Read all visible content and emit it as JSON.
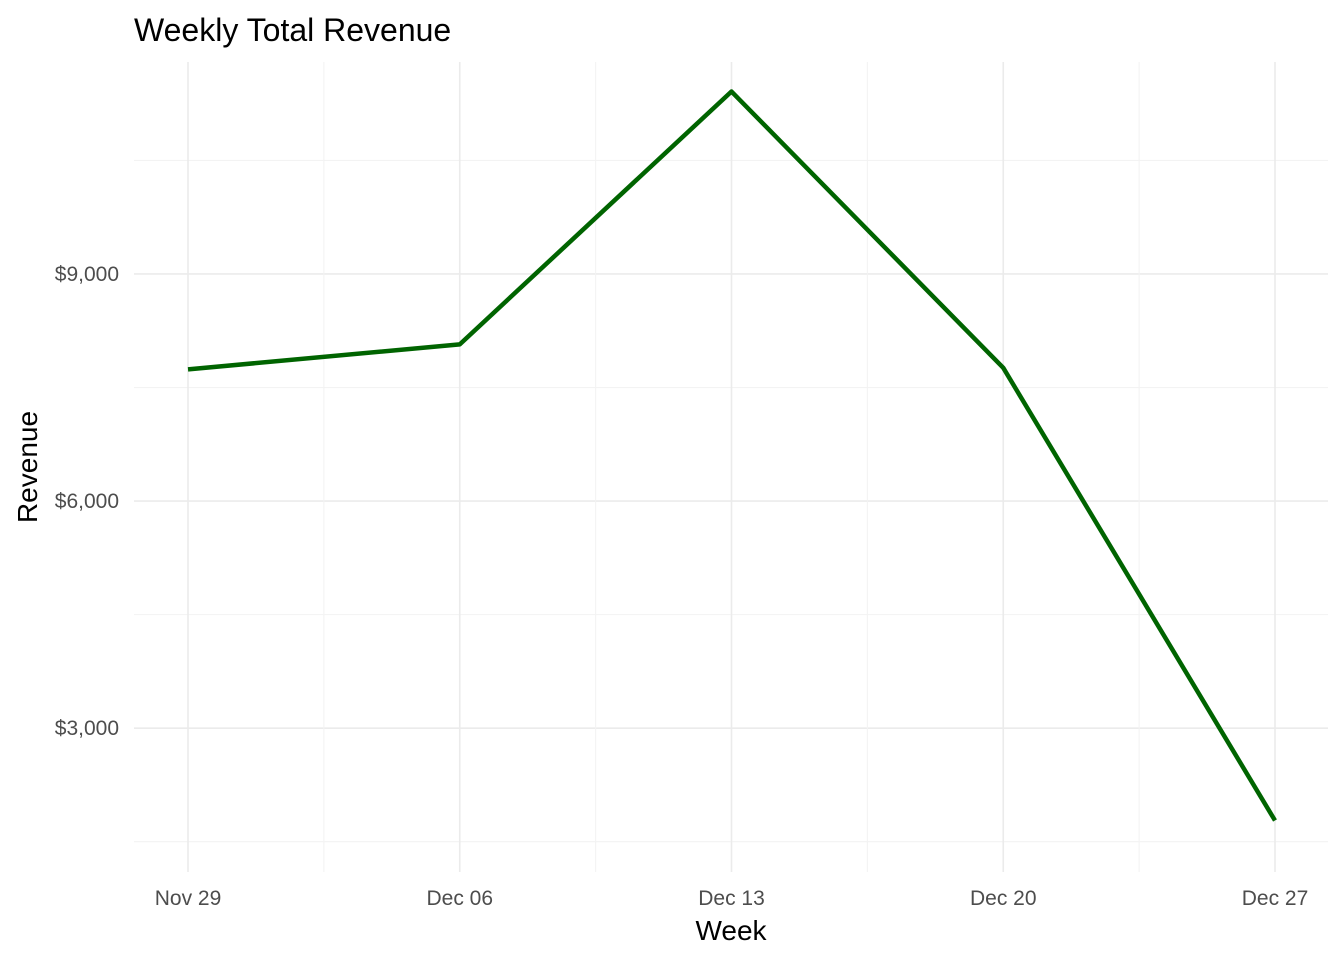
{
  "chart_data": {
    "type": "line",
    "title": "Weekly Total Revenue",
    "xlabel": "Week",
    "ylabel": "Revenue",
    "x": [
      "2020-11-29",
      "2020-12-06",
      "2020-12-13",
      "2020-12-20",
      "2020-12-27"
    ],
    "x_tick_labels": [
      "Nov 29",
      "Dec 06",
      "Dec 13",
      "Dec 20",
      "Dec 27"
    ],
    "series": [
      {
        "values": [
          7740,
          8070,
          11410,
          7760,
          1780
        ],
        "color": "#006400"
      }
    ],
    "y_ticks": [
      3000,
      6000,
      9000
    ],
    "y_tick_labels": [
      "$3,000",
      "$6,000",
      "$9,000"
    ],
    "ylim": [
      1100,
      11800
    ],
    "grid": true,
    "legend": "none"
  }
}
